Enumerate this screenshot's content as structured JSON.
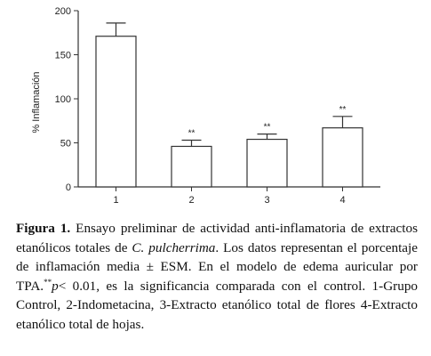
{
  "chart_data": {
    "type": "bar",
    "categories": [
      "1",
      "2",
      "3",
      "4"
    ],
    "values": [
      171,
      46,
      54,
      67
    ],
    "errors": [
      15,
      7,
      6,
      13
    ],
    "significance": [
      "",
      "**",
      "**",
      "**"
    ],
    "ylabel": "% Inflamación",
    "ylim": [
      0,
      200
    ],
    "yticks": [
      0,
      50,
      100,
      150,
      200
    ],
    "grid": false,
    "colors": {
      "bar_fill": "#ffffff",
      "bar_stroke": "#333333",
      "axis": "#333333"
    }
  },
  "caption": {
    "label": "Figura 1.",
    "part1": " Ensayo preliminar de actividad anti-inflamatoria de extractos etanólicos totales de ",
    "species": "C. pulcherrima",
    "part2": ". Los datos representan el porcentaje de inflamación media ± ESM. En el modelo de edema auricular por TPA.",
    "sup": "**",
    "p": "p",
    "part3": "< 0.01, es la significancia comparada con el control. 1-Grupo Control, 2-Indometacina, 3-Extracto etanólico total de flores 4-Extracto etanólico total de hojas."
  }
}
